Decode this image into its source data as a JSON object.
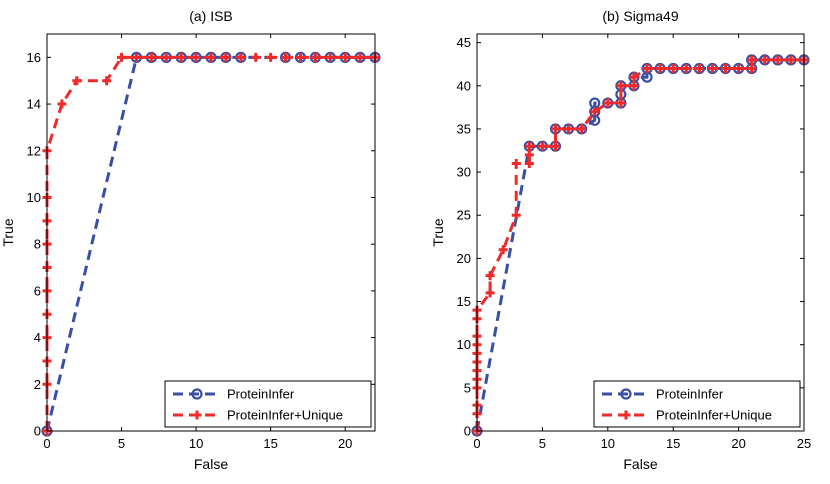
{
  "chart_data": [
    {
      "type": "line",
      "title": "(a) ISB",
      "xlabel": "False",
      "ylabel": "True",
      "xlim": [
        0,
        22
      ],
      "ylim": [
        0,
        17
      ],
      "xticks": [
        0,
        5,
        10,
        15,
        20
      ],
      "yticks": [
        0,
        2,
        4,
        6,
        8,
        10,
        12,
        14,
        16
      ],
      "legend": "bottom-right",
      "series": [
        {
          "name": "ProteinInfer",
          "color": "#3a4fa3",
          "marker": "circle",
          "points": [
            [
              0,
              0
            ],
            [
              6,
              16
            ],
            [
              7,
              16
            ],
            [
              8,
              16
            ],
            [
              9,
              16
            ],
            [
              10,
              16
            ],
            [
              11,
              16
            ],
            [
              12,
              16
            ],
            [
              13,
              16
            ],
            [
              16,
              16
            ],
            [
              17,
              16
            ],
            [
              18,
              16
            ],
            [
              19,
              16
            ],
            [
              20,
              16
            ],
            [
              21,
              16
            ],
            [
              22,
              16
            ]
          ]
        },
        {
          "name": "ProteinInfer+Unique",
          "color": "#ee2a2a",
          "marker": "plus",
          "points": [
            [
              0,
              0
            ],
            [
              0,
              2
            ],
            [
              0,
              3
            ],
            [
              0,
              4
            ],
            [
              0,
              5
            ],
            [
              0,
              6
            ],
            [
              0,
              7
            ],
            [
              0,
              8
            ],
            [
              0,
              9
            ],
            [
              0,
              10
            ],
            [
              0,
              12
            ],
            [
              1,
              14
            ],
            [
              2,
              15
            ],
            [
              4,
              15
            ],
            [
              5,
              16
            ],
            [
              6,
              16
            ],
            [
              7,
              16
            ],
            [
              8,
              16
            ],
            [
              9,
              16
            ],
            [
              10,
              16
            ],
            [
              11,
              16
            ],
            [
              12,
              16
            ],
            [
              13,
              16
            ],
            [
              14,
              16
            ],
            [
              15,
              16
            ],
            [
              16,
              16
            ],
            [
              17,
              16
            ],
            [
              18,
              16
            ],
            [
              19,
              16
            ],
            [
              20,
              16
            ],
            [
              21,
              16
            ],
            [
              22,
              16
            ]
          ]
        }
      ]
    },
    {
      "type": "line",
      "title": "(b) Sigma49",
      "xlabel": "False",
      "ylabel": "True",
      "xlim": [
        0,
        25
      ],
      "ylim": [
        0,
        46
      ],
      "xticks": [
        0,
        5,
        10,
        15,
        20,
        25
      ],
      "yticks": [
        0,
        5,
        10,
        15,
        20,
        25,
        30,
        35,
        40,
        45
      ],
      "legend": "bottom-right",
      "series": [
        {
          "name": "ProteinInfer",
          "color": "#3a4fa3",
          "marker": "circle",
          "points": [
            [
              0,
              0
            ],
            [
              4,
              33
            ],
            [
              5,
              33
            ],
            [
              6,
              33
            ],
            [
              6,
              35
            ],
            [
              7,
              35
            ],
            [
              8,
              35
            ],
            [
              9,
              36
            ],
            [
              9,
              37
            ],
            [
              9,
              38
            ],
            [
              10,
              38
            ],
            [
              11,
              38
            ],
            [
              11,
              39
            ],
            [
              11,
              40
            ],
            [
              12,
              40
            ],
            [
              12,
              41
            ],
            [
              13,
              41
            ],
            [
              13,
              42
            ],
            [
              14,
              42
            ],
            [
              15,
              42
            ],
            [
              16,
              42
            ],
            [
              17,
              42
            ],
            [
              18,
              42
            ],
            [
              19,
              42
            ],
            [
              20,
              42
            ],
            [
              21,
              42
            ],
            [
              21,
              43
            ],
            [
              22,
              43
            ],
            [
              23,
              43
            ],
            [
              24,
              43
            ],
            [
              25,
              43
            ]
          ]
        },
        {
          "name": "ProteinInfer+Unique",
          "color": "#ee2a2a",
          "marker": "plus",
          "points": [
            [
              0,
              0
            ],
            [
              0,
              2
            ],
            [
              0,
              3
            ],
            [
              0,
              5
            ],
            [
              0,
              6
            ],
            [
              0,
              7
            ],
            [
              0,
              8
            ],
            [
              0,
              9
            ],
            [
              0,
              10
            ],
            [
              0,
              11
            ],
            [
              0,
              13
            ],
            [
              0,
              14
            ],
            [
              1,
              16
            ],
            [
              1,
              18
            ],
            [
              2,
              21
            ],
            [
              3,
              25
            ],
            [
              3,
              31
            ],
            [
              4,
              31
            ],
            [
              4,
              32
            ],
            [
              4,
              33
            ],
            [
              5,
              33
            ],
            [
              6,
              33
            ],
            [
              6,
              35
            ],
            [
              7,
              35
            ],
            [
              8,
              35
            ],
            [
              9,
              37
            ],
            [
              10,
              38
            ],
            [
              11,
              38
            ],
            [
              11,
              40
            ],
            [
              12,
              40
            ],
            [
              12,
              41
            ],
            [
              13,
              42
            ],
            [
              14,
              42
            ],
            [
              15,
              42
            ],
            [
              16,
              42
            ],
            [
              17,
              42
            ],
            [
              18,
              42
            ],
            [
              19,
              42
            ],
            [
              20,
              42
            ],
            [
              21,
              42
            ],
            [
              21,
              43
            ],
            [
              22,
              43
            ],
            [
              23,
              43
            ],
            [
              24,
              43
            ],
            [
              25,
              43
            ]
          ]
        }
      ]
    }
  ]
}
